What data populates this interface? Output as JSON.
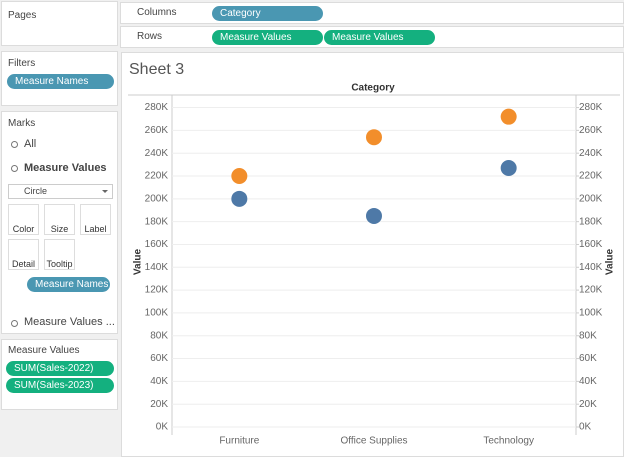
{
  "panels": {
    "pages": {
      "title": "Pages"
    },
    "filters": {
      "title": "Filters",
      "pills": [
        "Measure Names"
      ]
    },
    "marks": {
      "title": "Marks",
      "all": "All",
      "measure_values": "Measure Values",
      "mark_type": "Circle",
      "buttons": [
        "Color",
        "Size",
        "Label",
        "Detail",
        "Tooltip"
      ],
      "color_pill": "Measure Names",
      "more": "Measure Values ..."
    },
    "measure_values": {
      "title": "Measure Values"
    }
  },
  "shelves": {
    "columns": {
      "label": "Columns",
      "pills": [
        "Category"
      ]
    },
    "rows": {
      "label": "Rows",
      "pills": [
        "Measure Values",
        "Measure Values"
      ]
    }
  },
  "sheet_title": "Sheet 3",
  "chart_data": {
    "type": "dot",
    "x_label": "Category",
    "y_label": "Value",
    "y2_label": "Value",
    "categories": [
      "Furniture",
      "Office Supplies",
      "Technology"
    ],
    "series": [
      {
        "name": "SUM(Sales-2022)",
        "color": "#4e79a7",
        "values": [
          200000,
          185000,
          227000
        ]
      },
      {
        "name": "SUM(Sales-2023)",
        "color": "#f28e2b",
        "values": [
          220000,
          254000,
          272000
        ]
      }
    ],
    "ylim": [
      -7000,
      291000
    ],
    "yticks": [
      {
        "value": 0,
        "label": "0K"
      },
      {
        "value": 20000,
        "label": "20K"
      },
      {
        "value": 40000,
        "label": "40K"
      },
      {
        "value": 60000,
        "label": "60K"
      },
      {
        "value": 80000,
        "label": "80K"
      },
      {
        "value": 100000,
        "label": "100K"
      },
      {
        "value": 120000,
        "label": "120K"
      },
      {
        "value": 140000,
        "label": "140K"
      },
      {
        "value": 160000,
        "label": "160K"
      },
      {
        "value": 180000,
        "label": "180K"
      },
      {
        "value": 200000,
        "label": "200K"
      },
      {
        "value": 220000,
        "label": "220K"
      },
      {
        "value": 240000,
        "label": "240K"
      },
      {
        "value": 260000,
        "label": "260K"
      },
      {
        "value": 280000,
        "label": "280K"
      }
    ],
    "y2lim": [
      -7000,
      291000
    ],
    "y2ticks": [
      {
        "value": 0,
        "label": "0K"
      },
      {
        "value": 20000,
        "label": "20K"
      },
      {
        "value": 40000,
        "label": "40K"
      },
      {
        "value": 60000,
        "label": "60K"
      },
      {
        "value": 80000,
        "label": "80K"
      },
      {
        "value": 100000,
        "label": "100K"
      },
      {
        "value": 120000,
        "label": "120K"
      },
      {
        "value": 140000,
        "label": "140K"
      },
      {
        "value": 160000,
        "label": "160K"
      },
      {
        "value": 180000,
        "label": "180K"
      },
      {
        "value": 200000,
        "label": "200K"
      },
      {
        "value": 220000,
        "label": "220K"
      },
      {
        "value": 240000,
        "label": "240K"
      },
      {
        "value": 260000,
        "label": "260K"
      },
      {
        "value": 280000,
        "label": "280K"
      }
    ],
    "grid": true
  }
}
